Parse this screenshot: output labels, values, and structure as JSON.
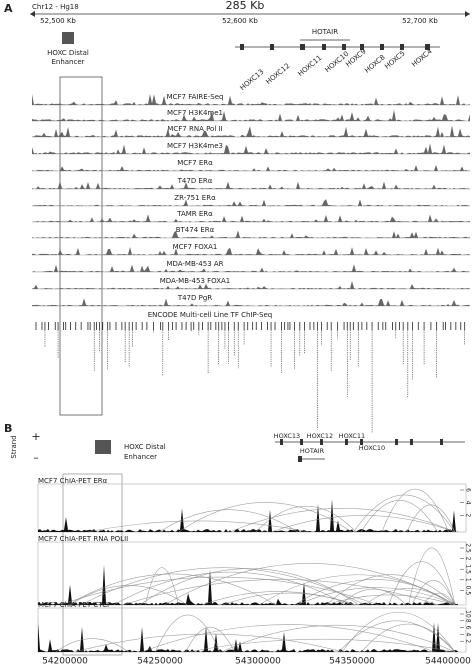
{
  "panel_a": {
    "label": "A",
    "chromosome": "Chr12 - Hg18",
    "span": "285 Kb",
    "coordinates": [
      "52,500 Kb",
      "52,600 Kb",
      "52,700 Kb"
    ],
    "enhancer_label": [
      "HOXC Distal",
      "Enhancer"
    ],
    "hotair": "HOTAIR",
    "genes": [
      "HOXC13",
      "HOXC12",
      "HOXC11",
      "HOXC10",
      "HOXC9",
      "HOXC8",
      "HOXC5",
      "HOXC4"
    ],
    "tracks": [
      "MCF7 FAIRE-Seq",
      "MCF7 H3K4me1",
      "MCF7 RNA Pol II",
      "MCF7 H3K4me3",
      "MCF7 ERα",
      "T47D ERα",
      "ZR-751 ERα",
      "TAMR ERα",
      "BT474 ERα",
      "MCF7 FOXA1",
      "MDA-MB-453 AR",
      "MDA-MB-453 FOXA1",
      "T47D PgR",
      "ENCODE Multi-cell Line TF ChIP-Seq"
    ]
  },
  "panel_b": {
    "label": "B",
    "strand": "Strand",
    "plus": "+",
    "minus": "–",
    "enhancer_label": [
      "HOXC Distal",
      "Enhancer"
    ],
    "genes": [
      "HOXC13",
      "HOXC12",
      "HOXC11",
      "HOTAIR",
      "HOXC10"
    ],
    "tracks": [
      {
        "title": "MCF7 ChIA-PET ERα",
        "ticks": [
          "6",
          "4",
          "2"
        ]
      },
      {
        "title": "MCF7 ChIA-PET RNA POLII",
        "ticks": [
          "2.5",
          "2",
          "1.5",
          "1",
          "0.5"
        ]
      },
      {
        "title": "MCF7 ChIA-PET CTCF",
        "ticks": [
          "10",
          "8",
          "6",
          "4",
          "2"
        ]
      }
    ],
    "coordinates": [
      "54200000",
      "54250000",
      "54300000",
      "54350000",
      "54400000"
    ]
  }
}
